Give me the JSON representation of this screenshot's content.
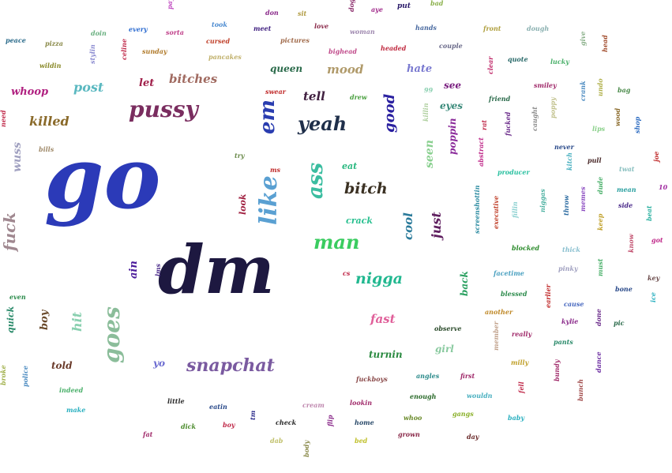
{
  "words": [
    {
      "text": "go",
      "color": "#2b3ab8"
    },
    {
      "text": "dm",
      "color": "#1d1840"
    },
    {
      "text": "pussy",
      "color": "#7a2d5f"
    },
    {
      "text": "yeah",
      "color": "#1f2f4a"
    },
    {
      "text": "em",
      "color": "#2a3db0"
    },
    {
      "text": "like",
      "color": "#5aa0d2"
    },
    {
      "text": "ass",
      "color": "#3bbda0"
    },
    {
      "text": "man",
      "color": "#3acc60"
    },
    {
      "text": "bitch",
      "color": "#3a3022"
    },
    {
      "text": "nigga",
      "color": "#22b890"
    },
    {
      "text": "goes",
      "color": "#8bbd9a"
    },
    {
      "text": "snapchat",
      "color": "#7a5aa0"
    },
    {
      "text": "fuck",
      "color": "#a08890"
    },
    {
      "text": "wuss",
      "color": "#a0a0c0"
    },
    {
      "text": "killed",
      "color": "#8a6a2a"
    },
    {
      "text": "bitches",
      "color": "#a06a60"
    },
    {
      "text": "whoop",
      "color": "#b02080"
    },
    {
      "text": "post",
      "color": "#5ab8c0"
    },
    {
      "text": "let",
      "color": "#a0204a"
    },
    {
      "text": "queen",
      "color": "#2a6a4a"
    },
    {
      "text": "mood",
      "color": "#b09a6a"
    },
    {
      "text": "hate",
      "color": "#7a7ad0"
    },
    {
      "text": "tell",
      "color": "#402040"
    },
    {
      "text": "good",
      "color": "#2a20a0"
    },
    {
      "text": "seen",
      "color": "#8ad090"
    },
    {
      "text": "poppin",
      "color": "#8a2a9a"
    },
    {
      "text": "see",
      "color": "#7a2080"
    },
    {
      "text": "eyes",
      "color": "#3a8a7a"
    },
    {
      "text": "just",
      "color": "#602060"
    },
    {
      "text": "cool",
      "color": "#2a7a9a"
    },
    {
      "text": "fast",
      "color": "#e0609a"
    },
    {
      "text": "girl",
      "color": "#8acaa0"
    },
    {
      "text": "turnin",
      "color": "#2a8a40"
    },
    {
      "text": "back",
      "color": "#2aa060"
    },
    {
      "text": "hit",
      "color": "#8ad0b0"
    },
    {
      "text": "boy",
      "color": "#6a4a2a"
    },
    {
      "text": "quick",
      "color": "#2a8a6a"
    },
    {
      "text": "told",
      "color": "#6a3a2a"
    },
    {
      "text": "ain",
      "color": "#4a1a9a"
    },
    {
      "text": "yo",
      "color": "#6a6ad0"
    },
    {
      "text": "look",
      "color": "#a02040"
    },
    {
      "text": "eat",
      "color": "#2ab880"
    },
    {
      "text": "crack",
      "color": "#2ac090"
    },
    {
      "text": "peace",
      "color": "#2a6a8a"
    },
    {
      "text": "pizza",
      "color": "#8a8a4a"
    },
    {
      "text": "doin",
      "color": "#6ab080"
    },
    {
      "text": "every",
      "color": "#2a6ad0"
    },
    {
      "text": "sorta",
      "color": "#c0408a"
    },
    {
      "text": "took",
      "color": "#4a8ad0"
    },
    {
      "text": "don",
      "color": "#8a2a8a"
    },
    {
      "text": "sit",
      "color": "#b09a40"
    },
    {
      "text": "meet",
      "color": "#402080"
    },
    {
      "text": "love",
      "color": "#8a2a4a"
    },
    {
      "text": "woman",
      "color": "#a08ab0"
    },
    {
      "text": "aye",
      "color": "#a02a8a"
    },
    {
      "text": "put",
      "color": "#2a1a6a"
    },
    {
      "text": "bad",
      "color": "#8ab04a"
    },
    {
      "text": "hands",
      "color": "#4a6aa0"
    },
    {
      "text": "front",
      "color": "#b0a040"
    },
    {
      "text": "dough",
      "color": "#8ab0b0"
    },
    {
      "text": "quote",
      "color": "#2a6a6a"
    },
    {
      "text": "lucky",
      "color": "#4ab06a"
    },
    {
      "text": "give",
      "color": "#8ab08a"
    },
    {
      "text": "head",
      "color": "#a04a2a"
    },
    {
      "text": "sunday",
      "color": "#b07a2a"
    },
    {
      "text": "cursed",
      "color": "#c0402a"
    },
    {
      "text": "pictures",
      "color": "#a06a4a"
    },
    {
      "text": "bighead",
      "color": "#c04a8a"
    },
    {
      "text": "headed",
      "color": "#c02a40"
    },
    {
      "text": "couple",
      "color": "#6a6a8a"
    },
    {
      "text": "pancakes",
      "color": "#c0b06a"
    },
    {
      "text": "wildin",
      "color": "#8a8a2a"
    },
    {
      "text": "celine",
      "color": "#c02a4a"
    },
    {
      "text": "stylin",
      "color": "#8a8ad0"
    },
    {
      "text": "swear",
      "color": "#c02a2a"
    },
    {
      "text": "drew",
      "color": "#4aa040"
    },
    {
      "text": "99",
      "color": "#8ad0b0"
    },
    {
      "text": "friend",
      "color": "#2a6a4a"
    },
    {
      "text": "clear",
      "color": "#c02a6a"
    },
    {
      "text": "smiley",
      "color": "#a02a6a"
    },
    {
      "text": "crank",
      "color": "#4a8ac0"
    },
    {
      "text": "undo",
      "color": "#b0b04a"
    },
    {
      "text": "bag",
      "color": "#4a8a4a"
    },
    {
      "text": "need",
      "color": "#c02a4a"
    },
    {
      "text": "bills",
      "color": "#a08a6a"
    },
    {
      "text": "killin",
      "color": "#b0d0a0"
    },
    {
      "text": "rat",
      "color": "#c02a4a"
    },
    {
      "text": "fucked",
      "color": "#6a2a8a"
    },
    {
      "text": "caught",
      "color": "#8a8a8a"
    },
    {
      "text": "poppy",
      "color": "#c0c08a"
    },
    {
      "text": "wood",
      "color": "#8a6a2a"
    },
    {
      "text": "shop",
      "color": "#2a6ac0"
    },
    {
      "text": "lips",
      "color": "#8ad08a"
    },
    {
      "text": "try",
      "color": "#6a8a4a"
    },
    {
      "text": "abstract",
      "color": "#c02a8a"
    },
    {
      "text": "never",
      "color": "#2a4a8a"
    },
    {
      "text": "pull",
      "color": "#4a2a2a"
    },
    {
      "text": "twat",
      "color": "#8ac0c0"
    },
    {
      "text": "joe",
      "color": "#c02a2a"
    },
    {
      "text": "ms",
      "color": "#c02a2a"
    },
    {
      "text": "producer",
      "color": "#2ac0a0"
    },
    {
      "text": "kitch",
      "color": "#4ab0c0"
    },
    {
      "text": "dude",
      "color": "#4ab06a"
    },
    {
      "text": "mean",
      "color": "#2aa0a0"
    },
    {
      "text": "10",
      "color": "#a02aa0"
    },
    {
      "text": "side",
      "color": "#4a2a8a"
    },
    {
      "text": "screenshottin",
      "color": "#2a8aa0"
    },
    {
      "text": "executive",
      "color": "#c0402a"
    },
    {
      "text": "fillin",
      "color": "#8ad0d0"
    },
    {
      "text": "niggas",
      "color": "#4ab0a0"
    },
    {
      "text": "throw",
      "color": "#2a6aa0"
    },
    {
      "text": "memes",
      "color": "#8a4ac0"
    },
    {
      "text": "keep",
      "color": "#c0a02a"
    },
    {
      "text": "beat",
      "color": "#2ab0a0"
    },
    {
      "text": "got",
      "color": "#c02a8a"
    },
    {
      "text": "blocked",
      "color": "#2a8a2a"
    },
    {
      "text": "thick",
      "color": "#8ac0d0"
    },
    {
      "text": "know",
      "color": "#c04a6a"
    },
    {
      "text": "must",
      "color": "#4ab06a"
    },
    {
      "text": "facetime",
      "color": "#4aa0c0"
    },
    {
      "text": "pinky",
      "color": "#a0a0c0"
    },
    {
      "text": "key",
      "color": "#6a4a4a"
    },
    {
      "text": "bone",
      "color": "#2a4a8a"
    },
    {
      "text": "ice",
      "color": "#2ab0c0"
    },
    {
      "text": "blessed",
      "color": "#2a8a4a"
    },
    {
      "text": "earlier",
      "color": "#c02a2a"
    },
    {
      "text": "cause",
      "color": "#4a6ac0"
    },
    {
      "text": "another",
      "color": "#c08a2a"
    },
    {
      "text": "kylie",
      "color": "#8a2a8a"
    },
    {
      "text": "done",
      "color": "#6a2a8a"
    },
    {
      "text": "pic",
      "color": "#2a6a4a"
    },
    {
      "text": "observe",
      "color": "#2a4a2a"
    },
    {
      "text": "really",
      "color": "#a02a6a"
    },
    {
      "text": "member",
      "color": "#c0a08a"
    },
    {
      "text": "pants",
      "color": "#2a8a6a"
    },
    {
      "text": "milly",
      "color": "#c0a02a"
    },
    {
      "text": "bundy",
      "color": "#a02a6a"
    },
    {
      "text": "dance",
      "color": "#6a2aa0"
    },
    {
      "text": "first",
      "color": "#a02a6a"
    },
    {
      "text": "fell",
      "color": "#c02a4a"
    },
    {
      "text": "bunch",
      "color": "#a04a4a"
    },
    {
      "text": "angles",
      "color": "#2a8a8a"
    },
    {
      "text": "fuckboys",
      "color": "#8a4a4a"
    },
    {
      "text": "enough",
      "color": "#2a6a2a"
    },
    {
      "text": "wouldn",
      "color": "#4ab0c0"
    },
    {
      "text": "baby",
      "color": "#2ab0c0"
    },
    {
      "text": "gangs",
      "color": "#8ab02a"
    },
    {
      "text": "whoo",
      "color": "#6a8a2a"
    },
    {
      "text": "grown",
      "color": "#8a2a4a"
    },
    {
      "text": "day",
      "color": "#6a2a2a"
    },
    {
      "text": "lookin",
      "color": "#a02a6a"
    },
    {
      "text": "home",
      "color": "#2a4a6a"
    },
    {
      "text": "bed",
      "color": "#c0c02a"
    },
    {
      "text": "cream",
      "color": "#c08ab0"
    },
    {
      "text": "flip",
      "color": "#8a2a8a"
    },
    {
      "text": "check",
      "color": "#2a2a2a"
    },
    {
      "text": "dab",
      "color": "#c0c06a"
    },
    {
      "text": "body",
      "color": "#8a8a4a"
    },
    {
      "text": "tm",
      "color": "#2a2a8a"
    },
    {
      "text": "boy",
      "color": "#c02a4a"
    },
    {
      "text": "eatin",
      "color": "#2a4a8a"
    },
    {
      "text": "dick",
      "color": "#4a8a2a"
    },
    {
      "text": "little",
      "color": "#2a2a2a"
    },
    {
      "text": "fat",
      "color": "#a02a6a"
    },
    {
      "text": "indeed",
      "color": "#4ab06a"
    },
    {
      "text": "make",
      "color": "#2ab0c0"
    },
    {
      "text": "police",
      "color": "#4a8ac0"
    },
    {
      "text": "broke",
      "color": "#a0b04a"
    },
    {
      "text": "even",
      "color": "#2a8a4a"
    },
    {
      "text": "lms",
      "color": "#4a2a8a"
    },
    {
      "text": "cs",
      "color": "#c02a4a"
    },
    {
      "text": "pay",
      "color": "#c04ac0"
    },
    {
      "text": "dog",
      "color": "#8a2a6a"
    }
  ]
}
